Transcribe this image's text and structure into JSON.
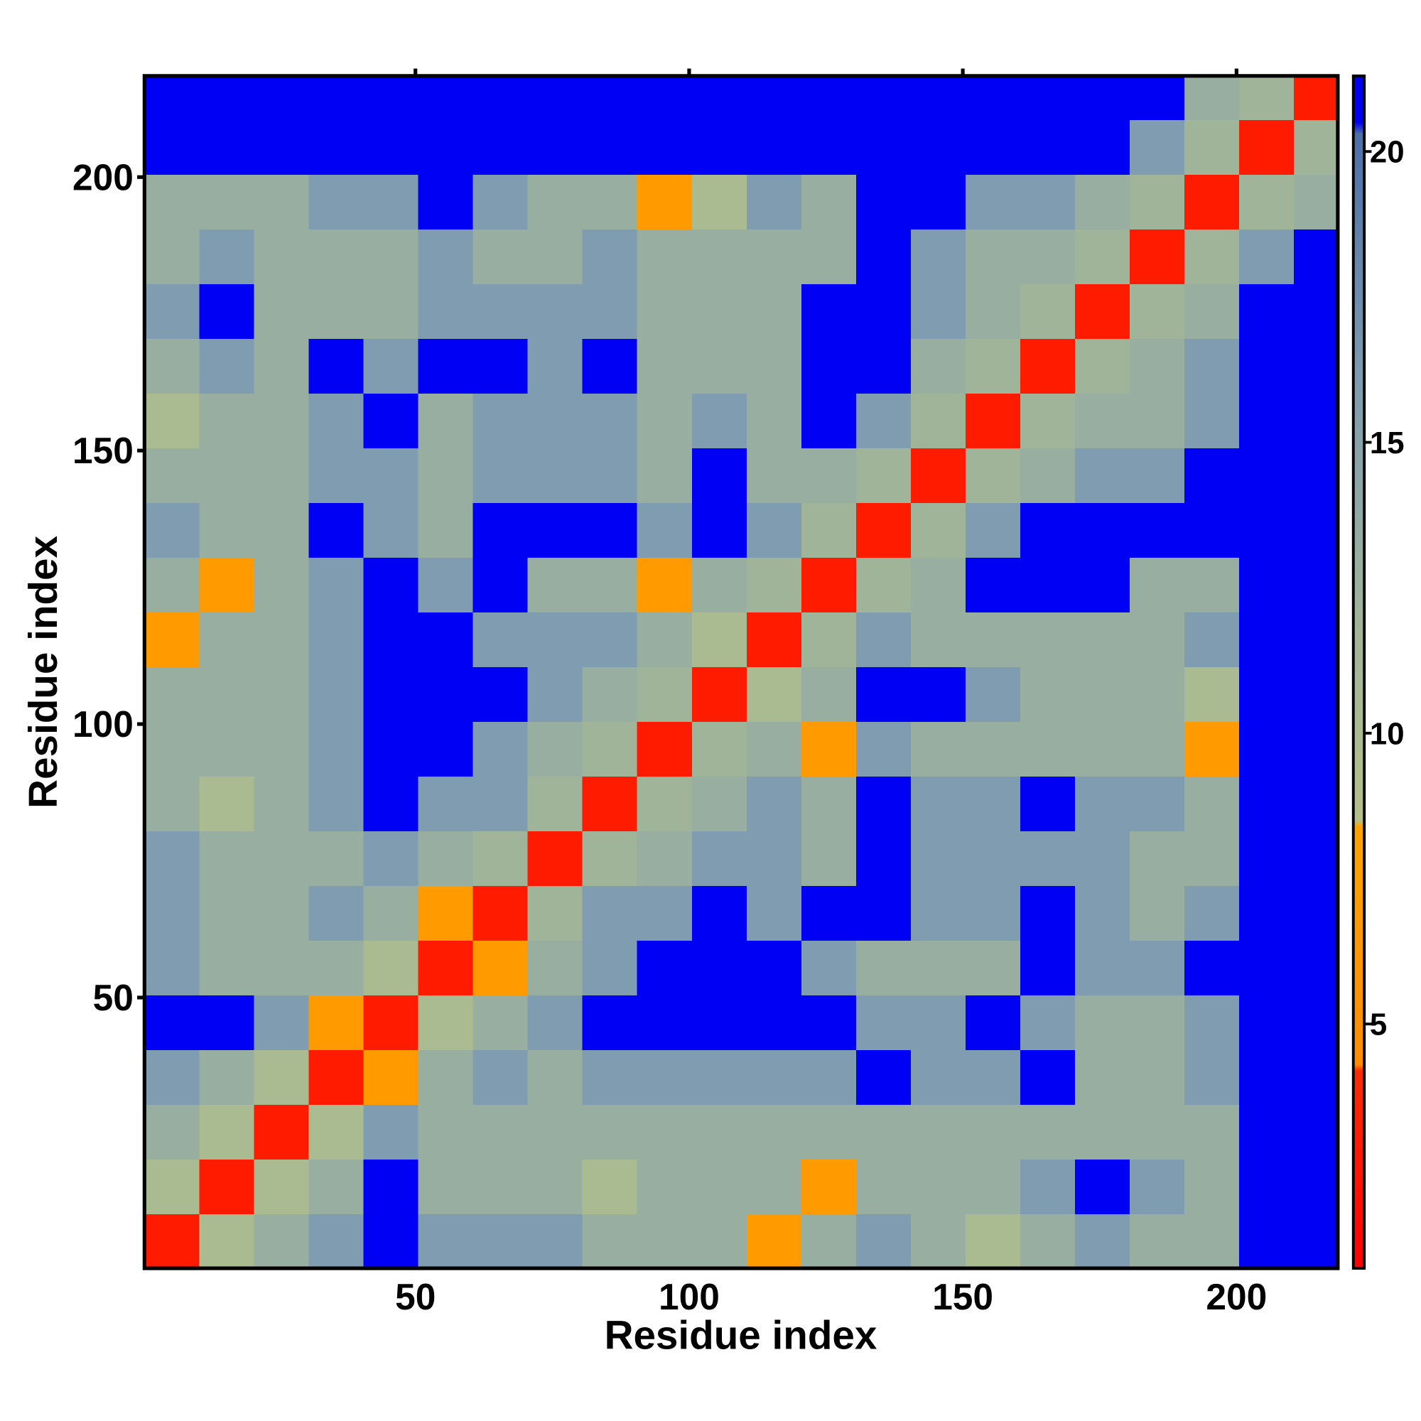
{
  "chart_data": {
    "type": "heatmap",
    "x_label": "Residue index",
    "y_label": "Residue index",
    "xbins": [
      0.5,
      10.5,
      20.5,
      30.5,
      40.5,
      50.5,
      60.5,
      70.5,
      80.5,
      90.5,
      100.5,
      110.5,
      120.5,
      130.5,
      140.5,
      150.5,
      160.5,
      170.5,
      180.5,
      190.5,
      200.5,
      210.5,
      218.5
    ],
    "ybins": [
      0.5,
      10.5,
      20.5,
      30.5,
      40.5,
      50.5,
      60.5,
      70.5,
      80.5,
      90.5,
      100.5,
      110.5,
      120.5,
      130.5,
      140.5,
      150.5,
      160.5,
      170.5,
      180.5,
      190.5,
      200.5,
      210.5,
      218.5
    ],
    "xlim": [
      0.5,
      218.5
    ],
    "ylim": [
      0.5,
      218.5
    ],
    "xticks": [
      50,
      100,
      150,
      200
    ],
    "yticks": [
      50,
      100,
      150,
      200
    ],
    "zlim": [
      0.8,
      21.3
    ],
    "zticks": [
      5,
      10,
      15,
      20
    ],
    "colorscale": [
      [
        0.8,
        "#ff0000"
      ],
      [
        4.2,
        "#ff2a00"
      ],
      [
        4.3,
        "#ff8c00"
      ],
      [
        8.4,
        "#ffa200"
      ],
      [
        8.5,
        "#b4c08a"
      ],
      [
        12,
        "#a0b49a"
      ],
      [
        16,
        "#7f9cb0"
      ],
      [
        20.3,
        "#4d6fa8"
      ],
      [
        20.5,
        "#0000f5"
      ],
      [
        21.3,
        "#0000f5"
      ]
    ],
    "z": [
      [
        3,
        10,
        13,
        16,
        21,
        16,
        16,
        16,
        13,
        13,
        13,
        7,
        13,
        16,
        13,
        10,
        13,
        16,
        13,
        13,
        21,
        21
      ],
      [
        10,
        3,
        10,
        13,
        21,
        13,
        13,
        13,
        10,
        13,
        13,
        13,
        7,
        13,
        13,
        13,
        16,
        21,
        16,
        13,
        21,
        21
      ],
      [
        13,
        10,
        3,
        10,
        16,
        13,
        13,
        13,
        13,
        13,
        13,
        13,
        13,
        13,
        13,
        13,
        13,
        13,
        13,
        13,
        21,
        21
      ],
      [
        16,
        13,
        10,
        3,
        7,
        13,
        16,
        13,
        16,
        16,
        16,
        16,
        16,
        21,
        16,
        16,
        21,
        13,
        13,
        16,
        21,
        21
      ],
      [
        21,
        21,
        16,
        7,
        3,
        10,
        13,
        16,
        21,
        21,
        21,
        21,
        21,
        16,
        16,
        21,
        16,
        13,
        13,
        16,
        21,
        21
      ],
      [
        16,
        13,
        13,
        13,
        10,
        3,
        7,
        13,
        16,
        21,
        21,
        21,
        16,
        13,
        13,
        13,
        21,
        16,
        16,
        21,
        21,
        21
      ],
      [
        16,
        13,
        13,
        16,
        13,
        7,
        3,
        12,
        16,
        16,
        21,
        16,
        21,
        21,
        16,
        16,
        21,
        16,
        13,
        16,
        21,
        21
      ],
      [
        16,
        13,
        13,
        13,
        16,
        13,
        12,
        3,
        12,
        13,
        16,
        16,
        13,
        21,
        16,
        16,
        16,
        16,
        13,
        13,
        21,
        21
      ],
      [
        13,
        10,
        13,
        16,
        21,
        16,
        16,
        12,
        3,
        12,
        13,
        16,
        13,
        21,
        16,
        16,
        21,
        16,
        16,
        13,
        21,
        21
      ],
      [
        13,
        13,
        13,
        16,
        21,
        21,
        16,
        13,
        12,
        3,
        12,
        13,
        7,
        16,
        13,
        13,
        13,
        13,
        13,
        7,
        21,
        21
      ],
      [
        13,
        13,
        13,
        16,
        21,
        21,
        21,
        16,
        13,
        12,
        3,
        10,
        13,
        21,
        21,
        16,
        13,
        13,
        13,
        10,
        21,
        21
      ],
      [
        7,
        13,
        13,
        16,
        21,
        21,
        16,
        16,
        16,
        13,
        10,
        3,
        12,
        16,
        13,
        13,
        13,
        13,
        13,
        16,
        21,
        21
      ],
      [
        13,
        7,
        13,
        16,
        21,
        16,
        21,
        13,
        13,
        7,
        13,
        12,
        3,
        12,
        13,
        21,
        21,
        21,
        13,
        13,
        21,
        21
      ],
      [
        16,
        13,
        13,
        21,
        16,
        13,
        21,
        21,
        21,
        16,
        21,
        16,
        12,
        3,
        12,
        16,
        21,
        21,
        21,
        21,
        21,
        21
      ],
      [
        13,
        13,
        13,
        16,
        16,
        13,
        16,
        16,
        16,
        13,
        21,
        13,
        13,
        12,
        3,
        12,
        13,
        16,
        16,
        21,
        21,
        21
      ],
      [
        10,
        13,
        13,
        16,
        21,
        13,
        16,
        16,
        16,
        13,
        16,
        13,
        21,
        16,
        12,
        3,
        12,
        13,
        13,
        16,
        21,
        21
      ],
      [
        13,
        16,
        13,
        21,
        16,
        21,
        21,
        16,
        21,
        13,
        13,
        13,
        21,
        21,
        13,
        12,
        3,
        12,
        13,
        16,
        21,
        21
      ],
      [
        16,
        21,
        13,
        13,
        13,
        16,
        16,
        16,
        16,
        13,
        13,
        13,
        21,
        21,
        16,
        13,
        12,
        3,
        12,
        13,
        21,
        21
      ],
      [
        13,
        16,
        13,
        13,
        13,
        16,
        13,
        13,
        16,
        13,
        13,
        13,
        13,
        21,
        16,
        13,
        13,
        12,
        3,
        12,
        16,
        21
      ],
      [
        13,
        13,
        13,
        16,
        16,
        21,
        16,
        13,
        13,
        7,
        10,
        16,
        13,
        21,
        21,
        16,
        16,
        13,
        12,
        3,
        12,
        13
      ],
      [
        21,
        21,
        21,
        21,
        21,
        21,
        21,
        21,
        21,
        21,
        21,
        21,
        21,
        21,
        21,
        21,
        21,
        21,
        16,
        12,
        3,
        12
      ],
      [
        21,
        21,
        21,
        21,
        21,
        21,
        21,
        21,
        21,
        21,
        21,
        21,
        21,
        21,
        21,
        21,
        21,
        21,
        21,
        13,
        12,
        3
      ]
    ]
  }
}
